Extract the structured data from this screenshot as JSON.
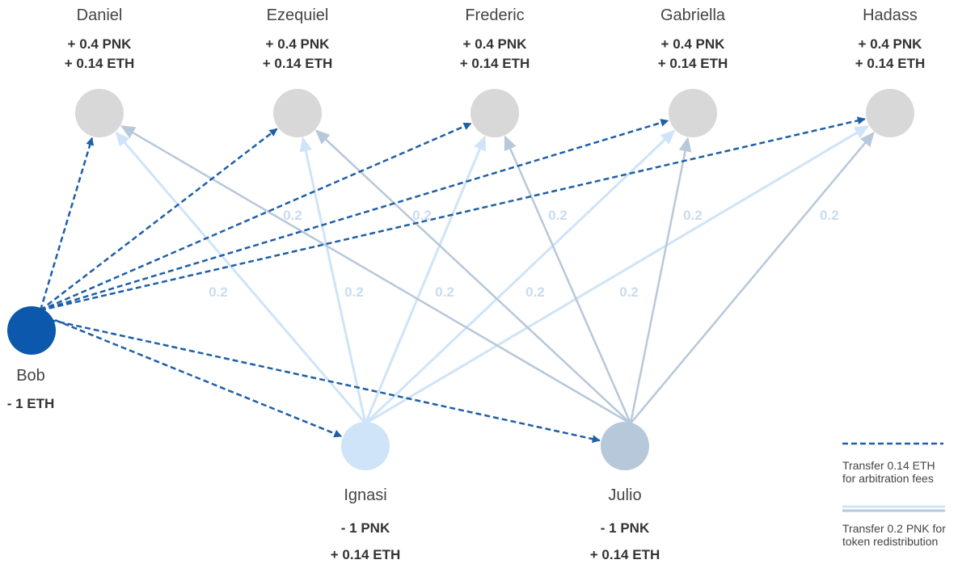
{
  "colors": {
    "eth_line": "#1f5fa6",
    "bob": "#0b58ad",
    "receiver": "#d8d8d8",
    "ignasi": "#cfe4f8",
    "julio": "#b7c8da",
    "ignasi_line": "#cfe4f8",
    "julio_line": "#b7c8da",
    "label": "#c8dcef"
  },
  "jurors_top": [
    {
      "id": "daniel",
      "name": "Daniel",
      "pnk": "+ 0.4 PNK",
      "eth": "+ 0.14 ETH"
    },
    {
      "id": "ezequiel",
      "name": "Ezequiel",
      "pnk": "+ 0.4 PNK",
      "eth": "+ 0.14 ETH"
    },
    {
      "id": "frederic",
      "name": "Frederic",
      "pnk": "+ 0.4 PNK",
      "eth": "+ 0.14 ETH"
    },
    {
      "id": "gabriella",
      "name": "Gabriella",
      "pnk": "+ 0.4 PNK",
      "eth": "+ 0.14 ETH"
    },
    {
      "id": "hadass",
      "name": "Hadass",
      "pnk": "+ 0.4 PNK",
      "eth": "+ 0.14 ETH"
    }
  ],
  "payer": {
    "id": "bob",
    "name": "Bob",
    "eth": "- 1 ETH"
  },
  "jurors_bottom": [
    {
      "id": "ignasi",
      "name": "Ignasi",
      "pnk": "- 1 PNK",
      "eth": "+ 0.14 ETH"
    },
    {
      "id": "julio",
      "name": "Julio",
      "pnk": "- 1 PNK",
      "eth": "+ 0.14 ETH"
    }
  ],
  "flow_labels": {
    "julio_row": [
      "0.2",
      "0.2",
      "0.2",
      "0.2",
      "0.2"
    ],
    "ignasi_row": [
      "0.2",
      "0.2",
      "0.2",
      "0.2",
      "0.2"
    ]
  },
  "legend": {
    "eth_transfer": "Transfer 0.14 ETH\nfor arbitration fees",
    "pnk_transfer": "Transfer 0.2 PNK for\ntoken redistribution"
  }
}
